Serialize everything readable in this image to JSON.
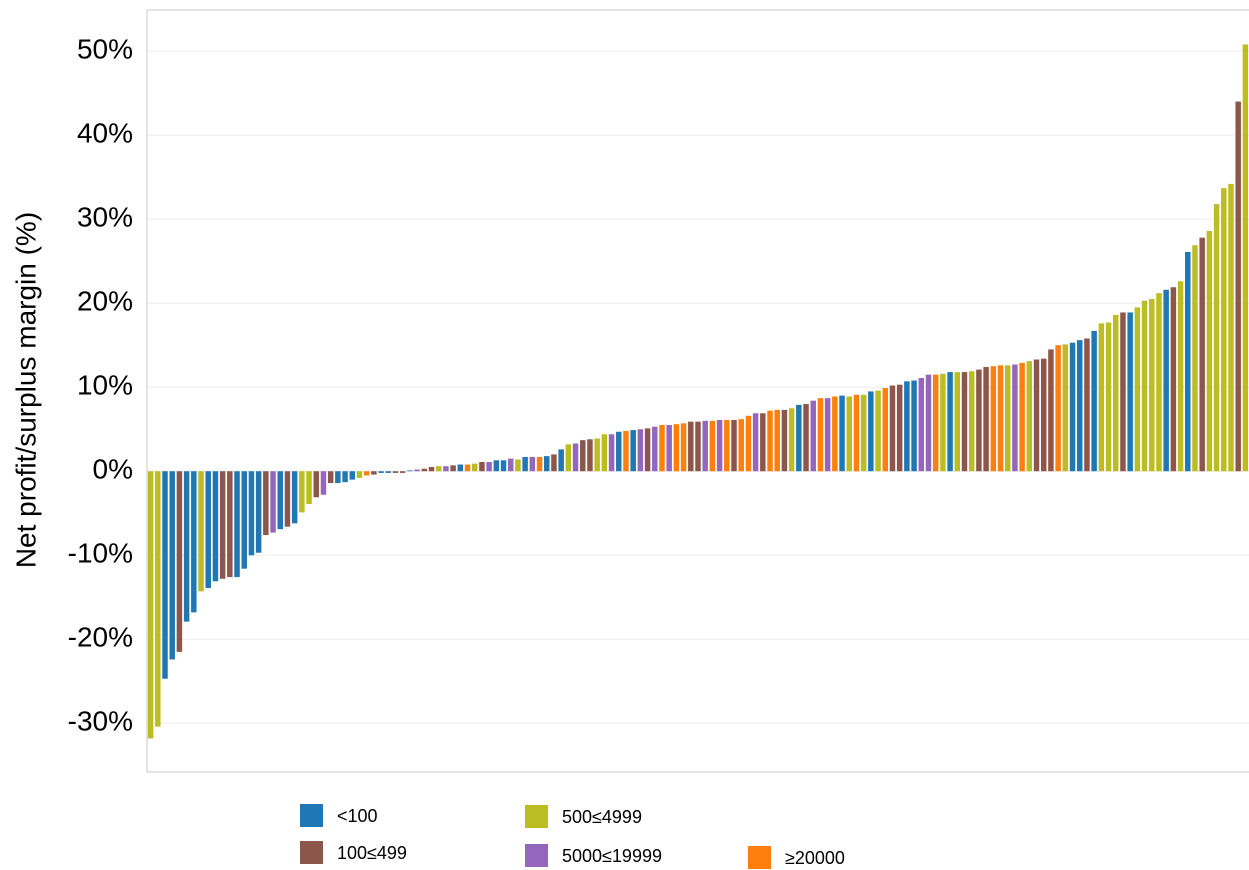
{
  "chart_data": {
    "type": "bar",
    "ylabel": "Net profit/surplus margin (%)",
    "ylim": [
      -35.8,
      54.9
    ],
    "yticks": [
      {
        "value": -30,
        "label": "-30%"
      },
      {
        "value": -20,
        "label": "-20%"
      },
      {
        "value": -10,
        "label": "-10%"
      },
      {
        "value": 0,
        "label": "0%"
      },
      {
        "value": 10,
        "label": "10%"
      },
      {
        "value": 20,
        "label": "20%"
      },
      {
        "value": 30,
        "label": "30%"
      },
      {
        "value": 40,
        "label": "40%"
      },
      {
        "value": 50,
        "label": "50%"
      }
    ],
    "grid": true,
    "legend": [
      {
        "name": "<100",
        "color": "#1f77b4"
      },
      {
        "name": "100≤499",
        "color": "#8c564b"
      },
      {
        "name": "500≤4999",
        "color": "#bcbd22"
      },
      {
        "name": "5000≤19999",
        "color": "#9467bd"
      },
      {
        "name": "≥20000",
        "color": "#ff7f0e"
      }
    ],
    "values": [
      -31.8,
      -30.4,
      -24.7,
      -22.4,
      -21.5,
      -17.9,
      -16.8,
      -14.3,
      -13.9,
      -13.1,
      -12.8,
      -12.6,
      -12.6,
      -11.6,
      -10.0,
      -9.7,
      -7.6,
      -7.3,
      -6.9,
      -6.6,
      -6.2,
      -4.9,
      -3.9,
      -3.1,
      -2.8,
      -1.4,
      -1.4,
      -1.3,
      -1.0,
      -0.8,
      -0.5,
      -0.4,
      -0.2,
      -0.2,
      -0.2,
      -0.2,
      0.1,
      0.2,
      0.3,
      0.5,
      0.6,
      0.6,
      0.7,
      0.8,
      0.8,
      0.9,
      1.1,
      1.1,
      1.3,
      1.3,
      1.5,
      1.4,
      1.7,
      1.7,
      1.7,
      1.8,
      2.0,
      2.6,
      3.2,
      3.3,
      3.7,
      3.8,
      3.9,
      4.4,
      4.4,
      4.7,
      4.8,
      4.9,
      5.0,
      5.1,
      5.3,
      5.5,
      5.5,
      5.6,
      5.7,
      5.9,
      5.9,
      6.0,
      6.0,
      6.1,
      6.1,
      6.1,
      6.2,
      6.6,
      6.9,
      6.9,
      7.2,
      7.3,
      7.3,
      7.5,
      7.9,
      8.0,
      8.4,
      8.7,
      8.7,
      8.9,
      9.0,
      8.9,
      9.1,
      9.1,
      9.5,
      9.6,
      9.9,
      10.2,
      10.3,
      10.7,
      10.8,
      11.1,
      11.5,
      11.5,
      11.6,
      11.8,
      11.8,
      11.8,
      11.9,
      12.1,
      12.4,
      12.5,
      12.6,
      12.6,
      12.7,
      12.9,
      13.1,
      13.3,
      13.4,
      14.5,
      15.0,
      15.1,
      15.3,
      15.6,
      15.8,
      16.7,
      17.6,
      17.7,
      18.6,
      18.9,
      18.9,
      19.5,
      20.3,
      20.5,
      21.2,
      21.6,
      21.9,
      22.6,
      26.1,
      26.9,
      27.8,
      28.6,
      31.8,
      33.7,
      34.2,
      44.0,
      50.8
    ],
    "bar_colors": [
      "#bcbd22",
      "#bcbd22",
      "#1f77b4",
      "#1f77b4",
      "#8c564b",
      "#1f77b4",
      "#1f77b4",
      "#bcbd22",
      "#1f77b4",
      "#1f77b4",
      "#8c564b",
      "#8c564b",
      "#1f77b4",
      "#1f77b4",
      "#1f77b4",
      "#1f77b4",
      "#8c564b",
      "#9467bd",
      "#1f77b4",
      "#8c564b",
      "#1f77b4",
      "#bcbd22",
      "#bcbd22",
      "#8c564b",
      "#9467bd",
      "#8c564b",
      "#1f77b4",
      "#1f77b4",
      "#1f77b4",
      "#bcbd22",
      "#ff7f0e",
      "#8c564b",
      "#1f77b4",
      "#1f77b4",
      "#8c564b",
      "#8c564b",
      "#1f77b4",
      "#9467bd",
      "#8c564b",
      "#8c564b",
      "#bcbd22",
      "#9467bd",
      "#8c564b",
      "#1f77b4",
      "#ff7f0e",
      "#bcbd22",
      "#8c564b",
      "#9467bd",
      "#1f77b4",
      "#1f77b4",
      "#9467bd",
      "#bcbd22",
      "#1f77b4",
      "#9467bd",
      "#ff7f0e",
      "#1f77b4",
      "#8c564b",
      "#1f77b4",
      "#bcbd22",
      "#9467bd",
      "#8c564b",
      "#8c564b",
      "#bcbd22",
      "#bcbd22",
      "#9467bd",
      "#1f77b4",
      "#ff7f0e",
      "#1f77b4",
      "#9467bd",
      "#8c564b",
      "#9467bd",
      "#ff7f0e",
      "#9467bd",
      "#ff7f0e",
      "#ff7f0e",
      "#8c564b",
      "#8c564b",
      "#9467bd",
      "#ff7f0e",
      "#9467bd",
      "#ff7f0e",
      "#8c564b",
      "#ff7f0e",
      "#ff7f0e",
      "#9467bd",
      "#8c564b",
      "#ff7f0e",
      "#ff7f0e",
      "#8c564b",
      "#bcbd22",
      "#1f77b4",
      "#8c564b",
      "#9467bd",
      "#ff7f0e",
      "#9467bd",
      "#ff7f0e",
      "#1f77b4",
      "#bcbd22",
      "#ff7f0e",
      "#bcbd22",
      "#1f77b4",
      "#bcbd22",
      "#ff7f0e",
      "#8c564b",
      "#8c564b",
      "#1f77b4",
      "#1f77b4",
      "#9467bd",
      "#9467bd",
      "#ff7f0e",
      "#bcbd22",
      "#1f77b4",
      "#bcbd22",
      "#8c564b",
      "#bcbd22",
      "#8c564b",
      "#8c564b",
      "#ff7f0e",
      "#ff7f0e",
      "#bcbd22",
      "#9467bd",
      "#ff7f0e",
      "#bcbd22",
      "#8c564b",
      "#8c564b",
      "#8c564b",
      "#ff7f0e",
      "#bcbd22",
      "#1f77b4",
      "#1f77b4",
      "#8c564b",
      "#1f77b4",
      "#bcbd22",
      "#bcbd22",
      "#bcbd22",
      "#8c564b",
      "#1f77b4",
      "#bcbd22",
      "#bcbd22",
      "#bcbd22",
      "#bcbd22",
      "#1f77b4",
      "#8c564b",
      "#bcbd22",
      "#1f77b4",
      "#bcbd22",
      "#8c564b",
      "#bcbd22",
      "#bcbd22",
      "#bcbd22",
      "#bcbd22",
      "#8c564b",
      "#bcbd22"
    ]
  }
}
